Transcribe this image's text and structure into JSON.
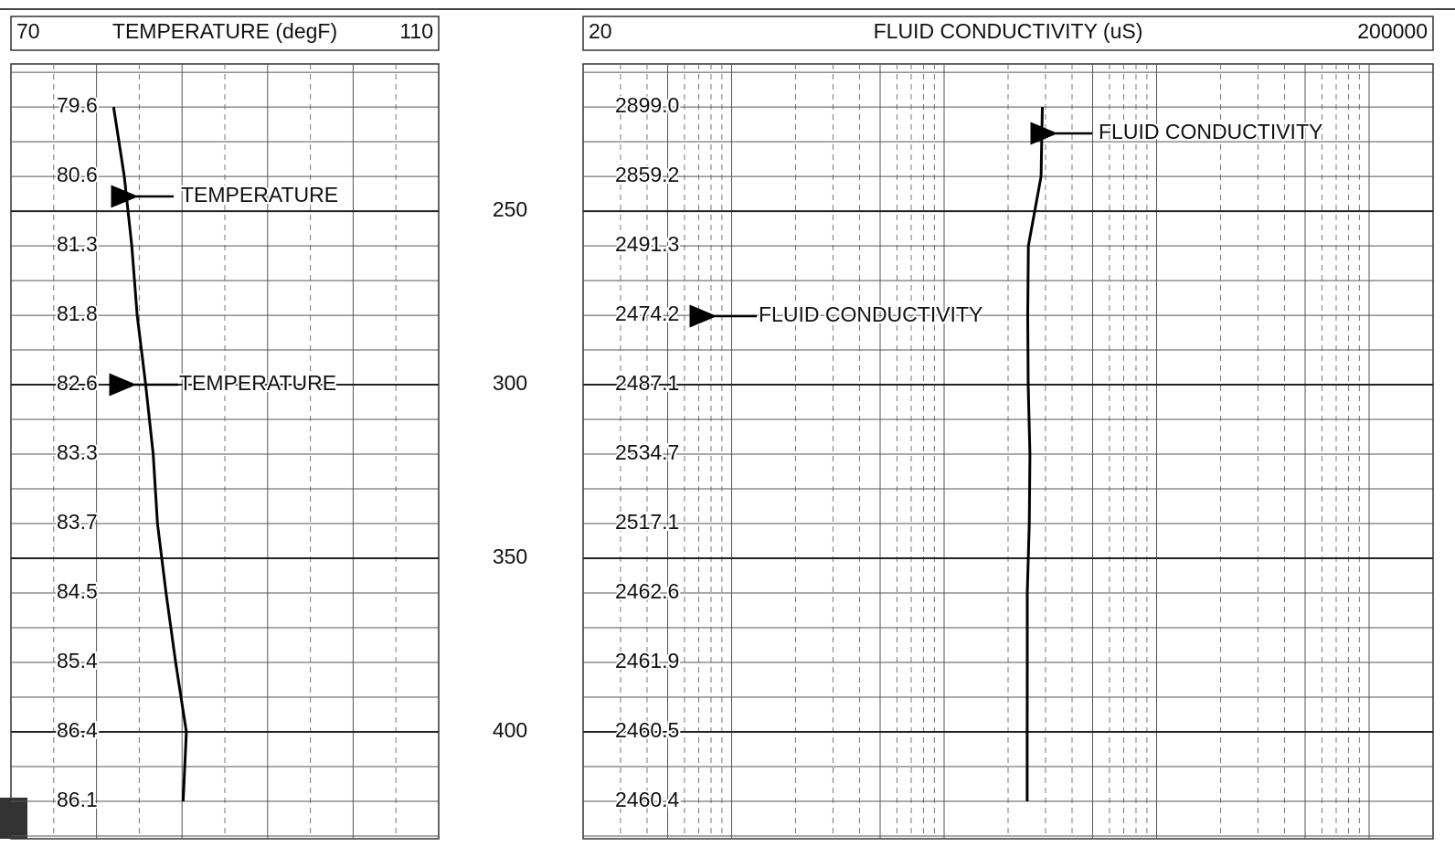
{
  "chart_data": {
    "type": "well-log",
    "depth": [
      220,
      240,
      260,
      280,
      300,
      320,
      340,
      360,
      380,
      400,
      420
    ],
    "ylim": [
      207.6,
      430.8
    ],
    "yticks": [
      250,
      300,
      350,
      400
    ],
    "tracks": [
      {
        "title": "TEMPERATURE (degF)",
        "scale": "linear",
        "xlim": [
          70,
          110
        ],
        "color": "#000000",
        "values": [
          79.6,
          80.6,
          81.3,
          81.8,
          82.6,
          83.3,
          83.7,
          84.5,
          85.4,
          86.4,
          86.1
        ],
        "annotations": [
          "TEMPERATURE",
          "TEMPERATURE"
        ]
      },
      {
        "title": "FLUID CONDUCTIVITY (uS)",
        "scale": "log",
        "xlim": [
          20,
          200000
        ],
        "color": "#000000",
        "values": [
          2899.0,
          2859.2,
          2491.3,
          2474.2,
          2487.1,
          2534.7,
          2517.1,
          2462.6,
          2461.9,
          2460.5,
          2460.4
        ],
        "value_labels": [
          "2899.0",
          "2859.2",
          "2491.3",
          "2474.2",
          "2487.1",
          "2534.7",
          "2517.1",
          "2462.6",
          "2461.9",
          "2460.5",
          "2460.4"
        ],
        "annotations": [
          "FLUID CONDUCTIVITY",
          "FLUID CONDUCTIVITY"
        ]
      }
    ]
  }
}
